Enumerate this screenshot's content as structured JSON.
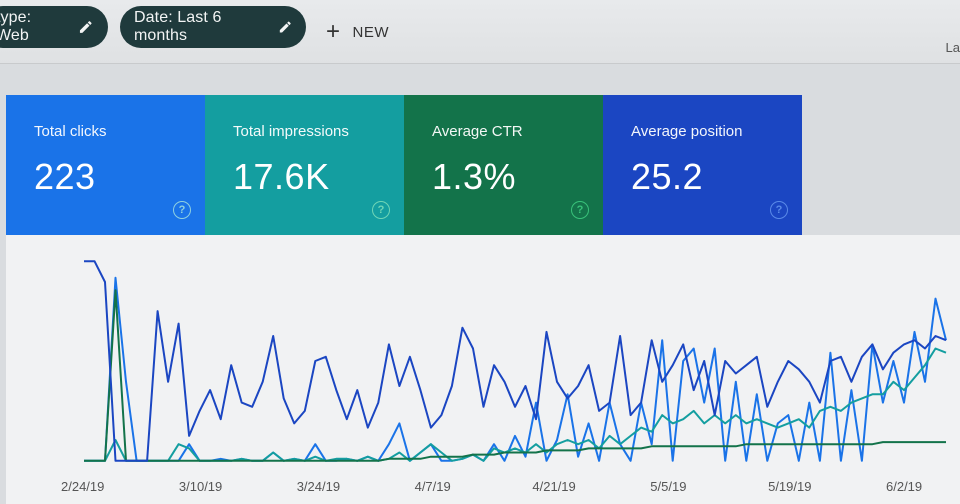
{
  "filters": {
    "type_chip": "type: Web",
    "date_chip": "Date: Last 6 months",
    "new_label": "NEW",
    "top_right_text": "La"
  },
  "metrics": [
    {
      "label": "Total clicks",
      "value": "223",
      "color": "#1a73e8"
    },
    {
      "label": "Total impressions",
      "value": "17.6K",
      "color": "#149ea0"
    },
    {
      "label": "Average CTR",
      "value": "1.3%",
      "color": "#13734a"
    },
    {
      "label": "Average position",
      "value": "25.2",
      "color": "#1b46c2"
    }
  ],
  "icons": {
    "edit": "pencil-icon",
    "add": "plus-icon",
    "help": "help-icon"
  },
  "chart_data": {
    "type": "line",
    "x_ticks": [
      "2/24/19",
      "3/10/19",
      "3/24/19",
      "4/7/19",
      "4/21/19",
      "5/5/19",
      "5/19/19",
      "6/2/19"
    ],
    "y_range": [
      0,
      100
    ],
    "grid": false,
    "series": [
      {
        "color": "#1a73e8",
        "values": [
          2,
          2,
          2,
          90,
          40,
          2,
          2,
          2,
          2,
          2,
          10,
          2,
          2,
          3,
          2,
          3,
          2,
          2,
          6,
          2,
          3,
          2,
          10,
          2,
          2,
          3,
          2,
          4,
          2,
          10,
          20,
          2,
          6,
          10,
          2,
          2,
          3,
          5,
          2,
          10,
          2,
          14,
          4,
          30,
          2,
          12,
          34,
          4,
          20,
          2,
          30,
          10,
          2,
          30,
          10,
          60,
          2,
          50,
          56,
          30,
          56,
          2,
          40,
          2,
          34,
          2,
          20,
          24,
          2,
          30,
          2,
          54,
          2,
          36,
          2,
          58,
          30,
          50,
          30,
          64,
          40,
          80,
          60
        ]
      },
      {
        "color": "#149ea0",
        "values": [
          2,
          2,
          2,
          12,
          2,
          2,
          2,
          2,
          2,
          10,
          8,
          2,
          2,
          2,
          2,
          3,
          2,
          2,
          6,
          2,
          3,
          2,
          4,
          2,
          3,
          3,
          2,
          4,
          2,
          3,
          6,
          2,
          6,
          10,
          6,
          2,
          3,
          5,
          2,
          8,
          6,
          8,
          6,
          10,
          6,
          10,
          12,
          10,
          12,
          8,
          14,
          10,
          14,
          18,
          16,
          24,
          20,
          22,
          26,
          20,
          24,
          20,
          24,
          20,
          22,
          20,
          18,
          20,
          22,
          18,
          26,
          28,
          26,
          30,
          32,
          34,
          34,
          40,
          36,
          42,
          48,
          56,
          54
        ]
      },
      {
        "color": "#13734a",
        "values": [
          2,
          2,
          2,
          84,
          2,
          2,
          2,
          2,
          2,
          2,
          2,
          2,
          2,
          2,
          2,
          2,
          2,
          2,
          2,
          2,
          2,
          2,
          2,
          2,
          2,
          2,
          2,
          2,
          2,
          3,
          3,
          3,
          3,
          4,
          4,
          4,
          4,
          5,
          5,
          5,
          6,
          6,
          6,
          6,
          7,
          7,
          7,
          7,
          8,
          8,
          8,
          8,
          8,
          8,
          9,
          9,
          9,
          9,
          9,
          9,
          9,
          9,
          9,
          10,
          10,
          10,
          10,
          10,
          10,
          10,
          10,
          10,
          10,
          10,
          10,
          10,
          11,
          11,
          11,
          11,
          11,
          11,
          11
        ]
      },
      {
        "color": "#1b46c2",
        "values": [
          98,
          98,
          88,
          2,
          2,
          2,
          2,
          74,
          40,
          68,
          14,
          26,
          36,
          22,
          48,
          30,
          28,
          40,
          62,
          32,
          20,
          26,
          50,
          52,
          36,
          22,
          36,
          18,
          30,
          58,
          38,
          52,
          36,
          18,
          24,
          38,
          66,
          56,
          28,
          48,
          40,
          28,
          38,
          22,
          64,
          40,
          32,
          38,
          48,
          26,
          30,
          62,
          24,
          30,
          60,
          40,
          48,
          58,
          36,
          50,
          24,
          50,
          44,
          48,
          52,
          28,
          40,
          50,
          46,
          40,
          30,
          50,
          52,
          40,
          52,
          58,
          46,
          54,
          58,
          60,
          56,
          62,
          60
        ]
      }
    ]
  }
}
